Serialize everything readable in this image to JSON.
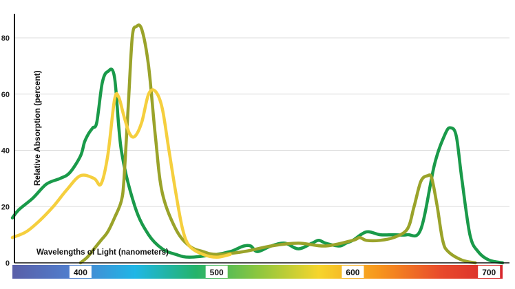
{
  "chart_data": {
    "type": "line",
    "title": "",
    "xlabel": "Wavelengths of Light (nanometers)",
    "ylabel": "Relative Absorption (percent)",
    "xlim": [
      350,
      710
    ],
    "ylim": [
      0,
      88
    ],
    "grid": true,
    "x_ticks": [
      "400",
      "500",
      "600",
      "700"
    ],
    "y_ticks": [
      "0",
      "20",
      "40",
      "60",
      "80"
    ],
    "spectrum_bar": {
      "colors": [
        "#5a5fa8",
        "#4f7fcf",
        "#1fb6e6",
        "#25b36a",
        "#8cc63f",
        "#f6d52c",
        "#f7941d",
        "#e84a2c",
        "#d7262b"
      ]
    },
    "series": [
      {
        "color": "#1a9a4a",
        "x": [
          350,
          355,
          365,
          375,
          385,
          392,
          400,
          403,
          406,
          409,
          412,
          416,
          420,
          425,
          430,
          440,
          450,
          460,
          470,
          480,
          500,
          510,
          515,
          520,
          525,
          530,
          540,
          550,
          560,
          570,
          575,
          580,
          590,
          595,
          600,
          610,
          620,
          630,
          640,
          650,
          660,
          668,
          672,
          676,
          680,
          686,
          692,
          700,
          710
        ],
        "y": [
          16,
          19,
          23,
          28,
          30,
          32,
          38,
          43,
          46,
          48,
          50,
          64,
          68,
          66,
          40,
          20,
          10,
          5,
          3,
          2,
          3,
          4,
          5,
          6,
          6,
          4,
          6,
          7,
          5,
          7,
          8,
          7,
          6,
          7,
          8,
          11,
          10,
          10,
          10,
          12,
          35,
          46,
          48,
          45,
          30,
          10,
          4,
          1,
          0
        ]
      },
      {
        "color": "#9aa32a",
        "x": [
          400,
          405,
          410,
          415,
          420,
          425,
          430,
          432,
          435,
          438,
          441,
          445,
          450,
          455,
          460,
          470,
          480,
          490,
          500,
          520,
          540,
          560,
          580,
          600,
          605,
          610,
          620,
          630,
          640,
          645,
          650,
          655,
          658,
          662,
          666,
          670,
          680,
          690
        ],
        "y": [
          0,
          2,
          5,
          8,
          11,
          16,
          22,
          30,
          55,
          80,
          84,
          83,
          70,
          45,
          25,
          12,
          6,
          4,
          3,
          4,
          6,
          7,
          6,
          8,
          9,
          8,
          8,
          9,
          12,
          20,
          29,
          31,
          30,
          20,
          8,
          4,
          1,
          0
        ]
      },
      {
        "color": "#f5cf3e",
        "x": [
          350,
          360,
          370,
          380,
          390,
          400,
          410,
          415,
          420,
          425,
          428,
          432,
          436,
          440,
          445,
          450,
          455,
          460,
          465,
          470,
          475,
          480,
          490,
          500,
          510
        ],
        "y": [
          9,
          11,
          15,
          20,
          26,
          31,
          30,
          28,
          38,
          58,
          59,
          52,
          46,
          45,
          50,
          60,
          61,
          55,
          40,
          25,
          12,
          6,
          3,
          2,
          3
        ]
      }
    ]
  }
}
